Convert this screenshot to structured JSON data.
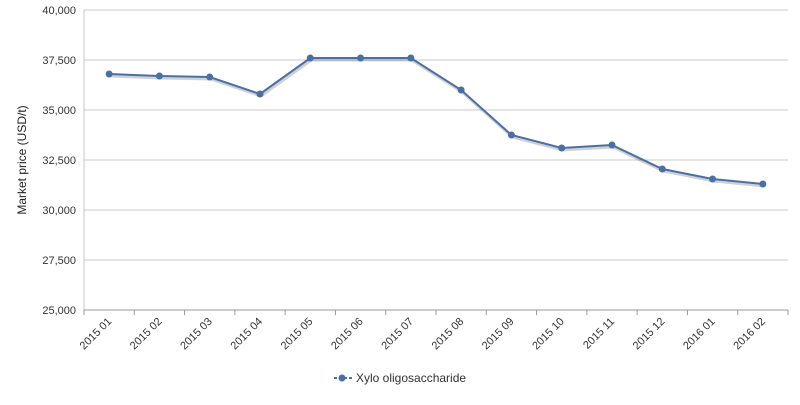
{
  "chart_data": {
    "type": "line",
    "categories": [
      "2015 01",
      "2015 02",
      "2015 03",
      "2015 04",
      "2015 05",
      "2015 06",
      "2015 07",
      "2015 08",
      "2015 09",
      "2015 10",
      "2015 11",
      "2015 12",
      "2016 01",
      "2016 02"
    ],
    "series": [
      {
        "name": "Xylo oligosaccharide",
        "values": [
          36800,
          36700,
          36650,
          35800,
          37600,
          37600,
          37600,
          36000,
          33750,
          33100,
          33250,
          32050,
          31550,
          31300
        ],
        "color": "#4a6fa5"
      }
    ],
    "ylabel": "Market price (USD/t)",
    "ylim": [
      25000,
      40000
    ],
    "yticks": [
      "25,000",
      "27,500",
      "30,000",
      "32,500",
      "35,000",
      "37,500",
      "40,000"
    ],
    "grid": true,
    "legend_position": "bottom-center"
  }
}
